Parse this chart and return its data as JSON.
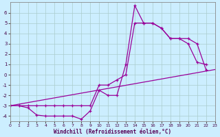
{
  "bg_color": "#cceeff",
  "line_color": "#990099",
  "grid_color": "#aacccc",
  "xlim": [
    0,
    23
  ],
  "ylim": [
    -4.5,
    7
  ],
  "xticks": [
    0,
    1,
    2,
    3,
    4,
    5,
    6,
    7,
    8,
    9,
    10,
    11,
    12,
    13,
    14,
    15,
    16,
    17,
    18,
    19,
    20,
    21,
    22,
    23
  ],
  "yticks": [
    -4,
    -3,
    -2,
    -1,
    0,
    1,
    2,
    3,
    4,
    5,
    6
  ],
  "line1_x": [
    0,
    1,
    2,
    3,
    4,
    5,
    6,
    7,
    8,
    9,
    10,
    11,
    12,
    13,
    14,
    15,
    16,
    17,
    18,
    19,
    20,
    21,
    22
  ],
  "line1_y": [
    -3,
    -3,
    -3.2,
    -3.9,
    -4,
    -4,
    -4,
    -4,
    -4.3,
    -3.5,
    -1.5,
    -2.0,
    -2.0,
    1.0,
    6.7,
    5.0,
    5.0,
    4.5,
    3.5,
    3.5,
    3.0,
    1.2,
    1.0
  ],
  "line2_x": [
    0,
    1,
    2,
    3,
    4,
    5,
    6,
    7,
    8,
    9,
    10,
    11,
    12,
    13,
    14,
    15,
    16,
    17,
    18,
    19,
    20,
    21,
    22
  ],
  "line2_y": [
    -3,
    -3,
    -3,
    -3,
    -3,
    -3,
    -3,
    -3,
    -3,
    -3,
    -1,
    -1,
    -0.5,
    0,
    5,
    5,
    5,
    4.5,
    3.5,
    3.5,
    3.5,
    3,
    0.5
  ],
  "line3_x": [
    0,
    23
  ],
  "line3_y": [
    -3.0,
    0.5
  ],
  "xlabel": "Windchill (Refroidissement éolien,°C)"
}
